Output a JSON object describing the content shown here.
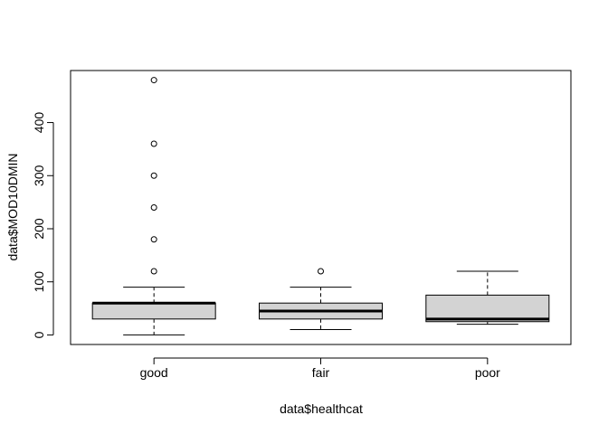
{
  "chart_data": {
    "type": "boxplot",
    "xlabel": "data$healthcat",
    "ylabel": "data$MOD10DMIN",
    "ylim": [
      -18,
      498
    ],
    "y_ticks": [
      0,
      100,
      200,
      300,
      400
    ],
    "categories": [
      "good",
      "fair",
      "poor"
    ],
    "boxes": [
      {
        "category": "good",
        "whisker_low": 0,
        "q1": 30,
        "median": 60,
        "q3": 60,
        "whisker_high": 90,
        "outliers": [
          120,
          180,
          240,
          300,
          360,
          480
        ]
      },
      {
        "category": "fair",
        "whisker_low": 10,
        "q1": 30,
        "median": 45,
        "q3": 60,
        "whisker_high": 90,
        "outliers": [
          120
        ]
      },
      {
        "category": "poor",
        "whisker_low": 20,
        "q1": 25,
        "median": 30,
        "q3": 75,
        "whisker_high": 120,
        "outliers": []
      }
    ],
    "box_fill": "#d3d3d3",
    "line_color": "#000000",
    "grid": false
  }
}
